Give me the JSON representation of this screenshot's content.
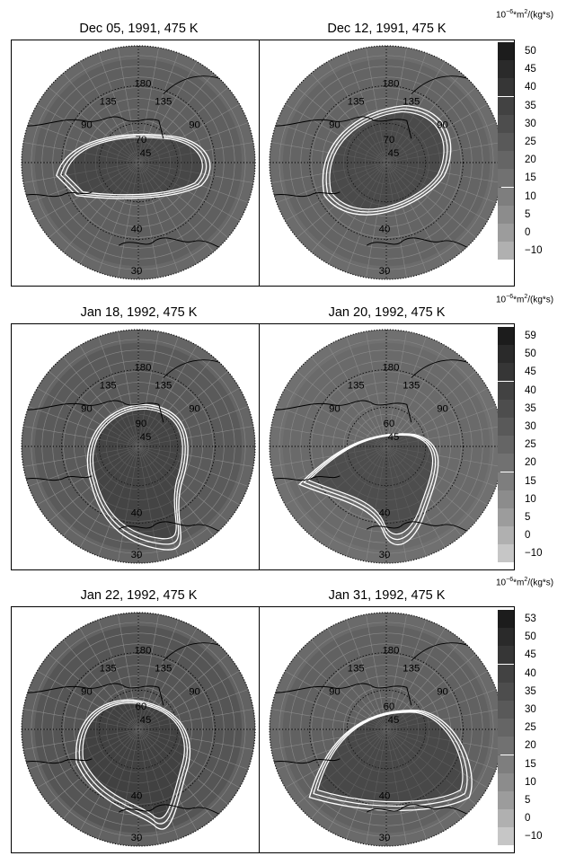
{
  "colorbar_unit": {
    "prefix": "10",
    "exp1": "−6",
    "mid": "*m",
    "exp2": "2",
    "suffix": "/(kg*s)"
  },
  "chart_data": [
    {
      "type": "heatmap",
      "projection": "polar-stereographic",
      "title": "Dec 05, 1991, 475 K",
      "map_labels": [
        "180",
        "135",
        "135",
        "90",
        "90",
        "70",
        "45",
        "40",
        "30"
      ],
      "colorbar": {
        "ticks": [
          "50",
          "45",
          "40",
          "35",
          "30",
          "25",
          "20",
          "15",
          "10",
          "5",
          "0",
          "−10"
        ],
        "range": [
          -10,
          50
        ]
      }
    },
    {
      "type": "heatmap",
      "projection": "polar-stereographic",
      "title": "Dec 12, 1991, 475 K",
      "map_labels": [
        "180",
        "135",
        "135",
        "90",
        "90",
        "70",
        "45",
        "40",
        "30"
      ],
      "colorbar": null
    },
    {
      "type": "heatmap",
      "projection": "polar-stereographic",
      "title": "Jan 18, 1992, 475 K",
      "map_labels": [
        "180",
        "135",
        "135",
        "90",
        "90",
        "90",
        "45",
        "40",
        "30"
      ],
      "colorbar": {
        "ticks": [
          "59",
          "50",
          "45",
          "40",
          "35",
          "30",
          "25",
          "20",
          "15",
          "10",
          "5",
          "0",
          "−10"
        ],
        "range": [
          -10,
          59
        ]
      }
    },
    {
      "type": "heatmap",
      "projection": "polar-stereographic",
      "title": "Jan 20, 1992, 475 K",
      "map_labels": [
        "180",
        "135",
        "135",
        "90",
        "90",
        "60",
        "45",
        "40",
        "30"
      ],
      "colorbar": null
    },
    {
      "type": "heatmap",
      "projection": "polar-stereographic",
      "title": "Jan 22, 1992, 475 K",
      "map_labels": [
        "180",
        "135",
        "135",
        "90",
        "90",
        "60",
        "45",
        "40",
        "30"
      ],
      "colorbar": {
        "ticks": [
          "53",
          "50",
          "45",
          "40",
          "35",
          "30",
          "25",
          "20",
          "15",
          "10",
          "5",
          "0",
          "−10"
        ],
        "range": [
          -10,
          53
        ]
      }
    },
    {
      "type": "heatmap",
      "projection": "polar-stereographic",
      "title": "Jan 31, 1992, 475 K",
      "map_labels": [
        "180",
        "135",
        "135",
        "90",
        "90",
        "60",
        "45",
        "40",
        "30"
      ],
      "colorbar": null
    }
  ]
}
